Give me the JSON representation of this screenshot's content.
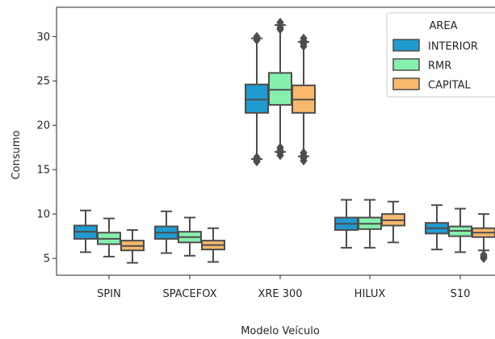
{
  "chart_data": {
    "type": "box",
    "title": "",
    "xlabel": "Modelo Veículo",
    "ylabel": "Consumo",
    "categories": [
      "SPIN",
      "SPACEFOX",
      "XRE 300",
      "HILUX",
      "S10"
    ],
    "ylim": [
      3.1,
      33.3
    ],
    "yticks": [
      5,
      10,
      15,
      20,
      25,
      30
    ],
    "grid": false,
    "legend": {
      "title": "AREA",
      "placement": "top-right"
    },
    "series": [
      {
        "name": "INTERIOR",
        "color": "#1f9bd0",
        "boxes": [
          {
            "whislo": 5.7,
            "q1": 7.2,
            "med": 8.0,
            "q3": 8.7,
            "whishi": 10.4,
            "fliers": []
          },
          {
            "whislo": 5.6,
            "q1": 7.2,
            "med": 7.9,
            "q3": 8.6,
            "whishi": 10.3,
            "fliers": []
          },
          {
            "whislo": 16.2,
            "q1": 21.4,
            "med": 22.9,
            "q3": 24.6,
            "whishi": 29.8,
            "fliers": [
              15.9,
              16.0,
              16.2,
              16.4,
              29.6,
              29.8,
              30.0
            ]
          },
          {
            "whislo": 6.2,
            "q1": 8.2,
            "med": 8.9,
            "q3": 9.6,
            "whishi": 11.6,
            "fliers": []
          },
          {
            "whislo": 6.0,
            "q1": 7.8,
            "med": 8.4,
            "q3": 9.0,
            "whishi": 11.0,
            "fliers": []
          }
        ]
      },
      {
        "name": "RMR",
        "color": "#86f0ad",
        "boxes": [
          {
            "whislo": 5.2,
            "q1": 6.6,
            "med": 7.2,
            "q3": 7.9,
            "whishi": 9.5,
            "fliers": []
          },
          {
            "whislo": 5.3,
            "q1": 6.8,
            "med": 7.4,
            "q3": 8.0,
            "whishi": 9.6,
            "fliers": []
          },
          {
            "whislo": 17.0,
            "q1": 22.3,
            "med": 24.0,
            "q3": 25.9,
            "whishi": 31.3,
            "fliers": [
              16.6,
              16.9,
              17.2,
              17.5,
              30.8,
              31.0,
              31.3,
              31.6
            ]
          },
          {
            "whislo": 6.2,
            "q1": 8.3,
            "med": 8.9,
            "q3": 9.6,
            "whishi": 11.6,
            "fliers": []
          },
          {
            "whislo": 5.7,
            "q1": 7.5,
            "med": 8.1,
            "q3": 8.6,
            "whishi": 10.6,
            "fliers": []
          }
        ]
      },
      {
        "name": "CAPITAL",
        "color": "#f9b86c",
        "boxes": [
          {
            "whislo": 4.5,
            "q1": 5.9,
            "med": 6.4,
            "q3": 7.0,
            "whishi": 8.2,
            "fliers": []
          },
          {
            "whislo": 4.6,
            "q1": 6.0,
            "med": 6.5,
            "q3": 7.0,
            "whishi": 8.4,
            "fliers": []
          },
          {
            "whislo": 16.5,
            "q1": 21.4,
            "med": 22.9,
            "q3": 24.5,
            "whishi": 29.4,
            "fliers": [
              16.0,
              16.3,
              16.6,
              16.9,
              28.9,
              29.2,
              29.5,
              29.8
            ]
          },
          {
            "whislo": 6.8,
            "q1": 8.7,
            "med": 9.3,
            "q3": 10.0,
            "whishi": 11.4,
            "fliers": []
          },
          {
            "whislo": 5.9,
            "q1": 7.4,
            "med": 7.9,
            "q3": 8.4,
            "whishi": 10.0,
            "fliers": [
              5.0,
              5.2,
              5.4
            ]
          }
        ]
      }
    ]
  }
}
